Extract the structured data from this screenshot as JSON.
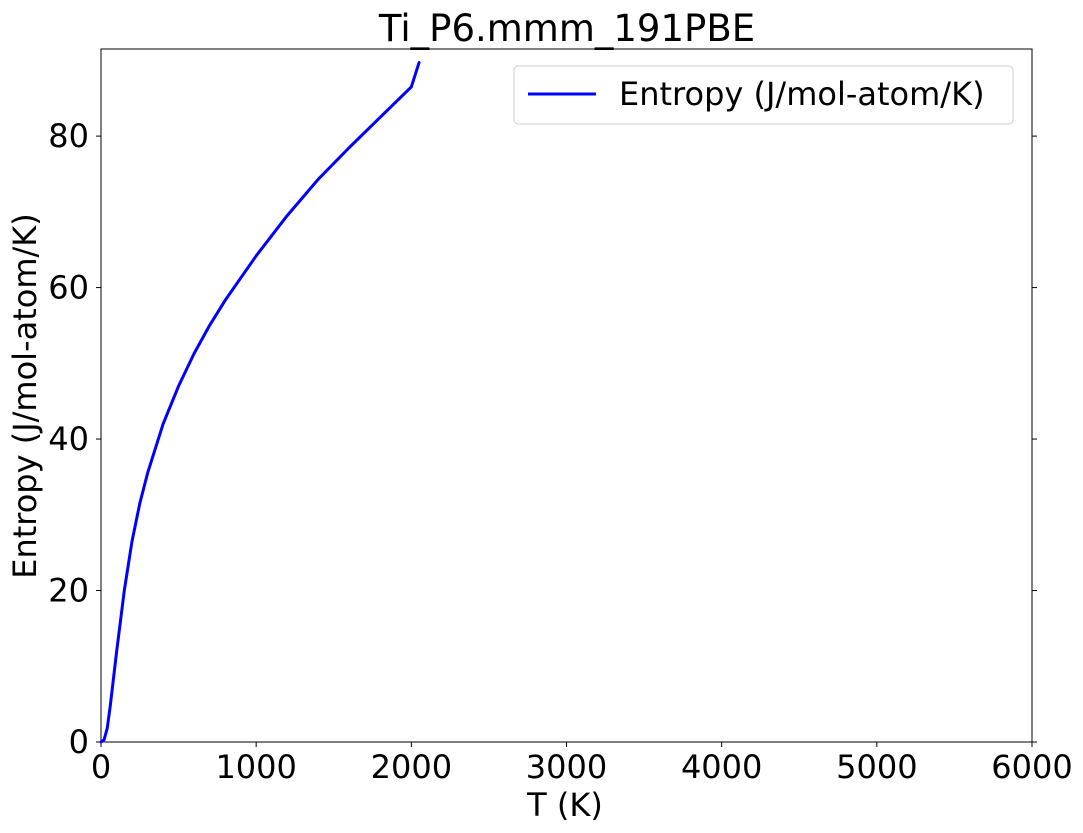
{
  "chart_data": {
    "type": "line",
    "title": "Ti_P6.mmm_191PBE",
    "xlabel": "T (K)",
    "ylabel": "Entropy (J/mol-atom/K)",
    "xlim": [
      0,
      6000
    ],
    "ylim": [
      0,
      91.5
    ],
    "xticks": [
      0,
      1000,
      2000,
      3000,
      4000,
      5000,
      6000
    ],
    "xtick_labels": [
      "0",
      "1000",
      "2000",
      "3000",
      "4000",
      "5000",
      "6000"
    ],
    "yticks": [
      0,
      20,
      40,
      60,
      80
    ],
    "ytick_labels": [
      "0",
      "20",
      "40",
      "60",
      "80"
    ],
    "grid": false,
    "legend_position": "upper right",
    "series": [
      {
        "name": "Entropy (J/mol-atom/K)",
        "color": "#0000ff",
        "x": [
          0,
          20,
          40,
          60,
          80,
          100,
          150,
          200,
          250,
          300,
          400,
          500,
          600,
          700,
          800,
          1000,
          1200,
          1400,
          1600,
          1800,
          2000,
          2050
        ],
        "y": [
          0,
          0.3,
          1.8,
          4.8,
          8.3,
          11.8,
          20.0,
          26.5,
          31.5,
          35.5,
          42.0,
          47.0,
          51.3,
          55.0,
          58.3,
          64.2,
          69.5,
          74.3,
          78.5,
          82.5,
          86.5,
          89.7
        ]
      }
    ]
  }
}
